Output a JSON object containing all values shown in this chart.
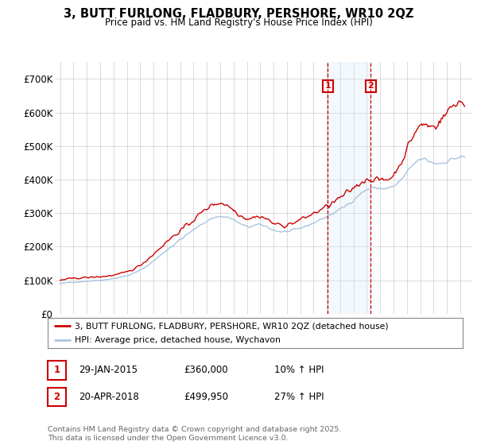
{
  "title": "3, BUTT FURLONG, FLADBURY, PERSHORE, WR10 2QZ",
  "subtitle": "Price paid vs. HM Land Registry's House Price Index (HPI)",
  "ylim": [
    0,
    750000
  ],
  "yticks": [
    0,
    100000,
    200000,
    300000,
    400000,
    500000,
    600000,
    700000
  ],
  "ytick_labels": [
    "£0",
    "£100K",
    "£200K",
    "£300K",
    "£400K",
    "£500K",
    "£600K",
    "£700K"
  ],
  "hpi_color": "#a8c4e0",
  "price_color": "#cc0000",
  "annotation_box_color": "#cc0000",
  "shaded_region_color": "#d8eaf8",
  "sale1_x": 2015.07,
  "sale2_x": 2018.29,
  "legend_line1": "3, BUTT FURLONG, FLADBURY, PERSHORE, WR10 2QZ (detached house)",
  "legend_line2": "HPI: Average price, detached house, Wychavon",
  "sale1_date": "29-JAN-2015",
  "sale1_price": "£360,000",
  "sale1_pct": "10% ↑ HPI",
  "sale2_date": "20-APR-2018",
  "sale2_price": "£499,950",
  "sale2_pct": "27% ↑ HPI",
  "footer": "Contains HM Land Registry data © Crown copyright and database right 2025.\nThis data is licensed under the Open Government Licence v3.0.",
  "background_color": "#ffffff",
  "grid_color": "#cccccc"
}
